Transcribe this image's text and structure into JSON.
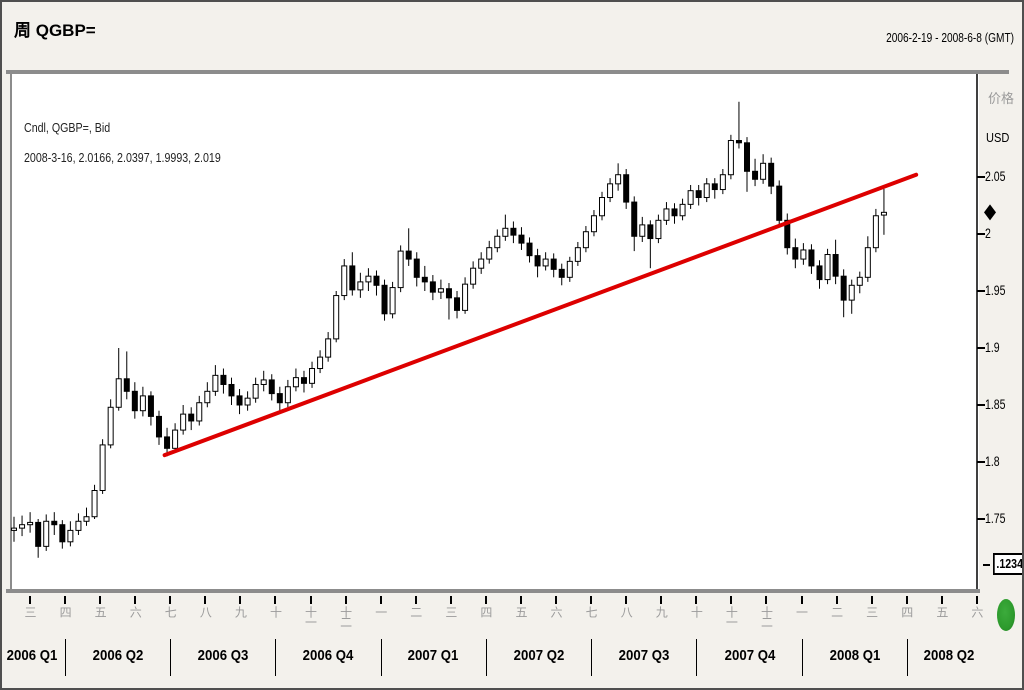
{
  "header": {
    "title": "周 QGBP=",
    "date_range": "2006-2-19 -  2008-6-8 (GMT)"
  },
  "legend": {
    "line1": "Cndl, QGBP=, Bid",
    "line2": "2008-3-16, 2.0166, 2.0397, 1.9993, 2.019"
  },
  "y_axis": {
    "label_cn": "价格",
    "currency": "USD",
    "tick_labels": [
      "2.05",
      "2",
      "1.95",
      "1.9",
      "1.85",
      "1.8",
      "1.75"
    ],
    "tick_values": [
      2.05,
      2.0,
      1.95,
      1.9,
      1.85,
      1.8,
      1.75
    ],
    "last_price_marker": 2.019,
    "decimal_box": ".1234"
  },
  "x_axis": {
    "months": [
      "三",
      "四",
      "五",
      "六",
      "七",
      "八",
      "九",
      "十",
      "十一",
      "十二",
      "一",
      "二",
      "三",
      "四",
      "五",
      "六",
      "七",
      "八",
      "九",
      "十",
      "十一",
      "十二",
      "一",
      "二",
      "三",
      "四",
      "五",
      "六"
    ],
    "quarters": [
      "2006 Q1",
      "2006 Q2",
      "2006 Q3",
      "2006 Q4",
      "2007 Q1",
      "2007 Q2",
      "2007 Q3",
      "2007 Q4",
      "2008 Q1",
      "2008 Q2"
    ]
  },
  "chart_data": {
    "type": "candlestick",
    "instrument": "QGBP=",
    "field": "Bid",
    "interval": "weekly",
    "start_date": "2006-2-19",
    "axis_end_date": "2008-6-8",
    "last_candle_date": "2008-3-16",
    "ylim": [
      1.69,
      2.14
    ],
    "up_candle_fill": "#ffffff",
    "down_candle_fill": "#000000",
    "candles": [
      [
        1.74,
        1.752,
        1.73,
        1.742
      ],
      [
        1.742,
        1.753,
        1.735,
        1.745
      ],
      [
        1.745,
        1.756,
        1.738,
        1.747
      ],
      [
        1.747,
        1.75,
        1.716,
        1.726
      ],
      [
        1.726,
        1.754,
        1.722,
        1.748
      ],
      [
        1.748,
        1.756,
        1.736,
        1.745
      ],
      [
        1.745,
        1.749,
        1.724,
        1.73
      ],
      [
        1.73,
        1.748,
        1.726,
        1.74
      ],
      [
        1.74,
        1.755,
        1.736,
        1.748
      ],
      [
        1.748,
        1.76,
        1.744,
        1.752
      ],
      [
        1.752,
        1.78,
        1.75,
        1.775
      ],
      [
        1.775,
        1.82,
        1.772,
        1.815
      ],
      [
        1.815,
        1.855,
        1.812,
        1.848
      ],
      [
        1.848,
        1.9,
        1.845,
        1.873
      ],
      [
        1.873,
        1.897,
        1.855,
        1.862
      ],
      [
        1.862,
        1.87,
        1.838,
        1.845
      ],
      [
        1.845,
        1.866,
        1.84,
        1.858
      ],
      [
        1.858,
        1.862,
        1.832,
        1.84
      ],
      [
        1.84,
        1.845,
        1.815,
        1.822
      ],
      [
        1.822,
        1.83,
        1.805,
        1.812
      ],
      [
        1.812,
        1.834,
        1.808,
        1.828
      ],
      [
        1.828,
        1.85,
        1.824,
        1.842
      ],
      [
        1.842,
        1.848,
        1.828,
        1.836
      ],
      [
        1.836,
        1.858,
        1.832,
        1.852
      ],
      [
        1.852,
        1.87,
        1.848,
        1.862
      ],
      [
        1.862,
        1.885,
        1.858,
        1.876
      ],
      [
        1.876,
        1.882,
        1.86,
        1.868
      ],
      [
        1.868,
        1.874,
        1.85,
        1.858
      ],
      [
        1.858,
        1.864,
        1.842,
        1.85
      ],
      [
        1.85,
        1.862,
        1.845,
        1.856
      ],
      [
        1.856,
        1.874,
        1.852,
        1.868
      ],
      [
        1.868,
        1.88,
        1.862,
        1.872
      ],
      [
        1.872,
        1.877,
        1.854,
        1.86
      ],
      [
        1.86,
        1.866,
        1.844,
        1.852
      ],
      [
        1.852,
        1.872,
        1.848,
        1.866
      ],
      [
        1.866,
        1.882,
        1.862,
        1.874
      ],
      [
        1.874,
        1.88,
        1.861,
        1.869
      ],
      [
        1.869,
        1.888,
        1.865,
        1.882
      ],
      [
        1.882,
        1.898,
        1.878,
        1.892
      ],
      [
        1.892,
        1.914,
        1.888,
        1.908
      ],
      [
        1.908,
        1.95,
        1.905,
        1.946
      ],
      [
        1.946,
        1.978,
        1.942,
        1.972
      ],
      [
        1.972,
        1.984,
        1.946,
        1.951
      ],
      [
        1.951,
        1.966,
        1.944,
        1.958
      ],
      [
        1.958,
        1.97,
        1.95,
        1.963
      ],
      [
        1.963,
        1.968,
        1.946,
        1.955
      ],
      [
        1.955,
        1.96,
        1.924,
        1.93
      ],
      [
        1.93,
        1.958,
        1.926,
        1.953
      ],
      [
        1.953,
        1.99,
        1.949,
        1.985
      ],
      [
        1.985,
        2.005,
        1.972,
        1.978
      ],
      [
        1.978,
        1.984,
        1.954,
        1.962
      ],
      [
        1.962,
        1.972,
        1.95,
        1.958
      ],
      [
        1.958,
        1.964,
        1.942,
        1.949
      ],
      [
        1.949,
        1.96,
        1.943,
        1.952
      ],
      [
        1.952,
        1.957,
        1.925,
        1.944
      ],
      [
        1.944,
        1.95,
        1.926,
        1.933
      ],
      [
        1.933,
        1.962,
        1.93,
        1.956
      ],
      [
        1.956,
        1.976,
        1.952,
        1.97
      ],
      [
        1.97,
        1.984,
        1.965,
        1.978
      ],
      [
        1.978,
        1.994,
        1.974,
        1.988
      ],
      [
        1.988,
        2.004,
        1.984,
        1.998
      ],
      [
        1.998,
        2.017,
        1.994,
        2.005
      ],
      [
        2.005,
        2.011,
        1.992,
        1.999
      ],
      [
        1.999,
        2.006,
        1.986,
        1.992
      ],
      [
        1.992,
        1.997,
        1.975,
        1.981
      ],
      [
        1.981,
        1.987,
        1.962,
        1.972
      ],
      [
        1.972,
        1.984,
        1.968,
        1.978
      ],
      [
        1.978,
        1.983,
        1.962,
        1.969
      ],
      [
        1.969,
        1.974,
        1.955,
        1.962
      ],
      [
        1.962,
        1.98,
        1.958,
        1.976
      ],
      [
        1.976,
        1.993,
        1.972,
        1.988
      ],
      [
        1.988,
        2.007,
        1.984,
        2.002
      ],
      [
        2.002,
        2.021,
        1.998,
        2.016
      ],
      [
        2.016,
        2.037,
        2.012,
        2.032
      ],
      [
        2.032,
        2.049,
        2.028,
        2.044
      ],
      [
        2.044,
        2.062,
        2.038,
        2.052
      ],
      [
        2.052,
        2.057,
        2.022,
        2.028
      ],
      [
        2.028,
        2.033,
        1.985,
        1.998
      ],
      [
        1.998,
        2.015,
        1.993,
        2.008
      ],
      [
        2.008,
        2.012,
        1.97,
        1.996
      ],
      [
        1.996,
        2.017,
        1.992,
        2.012
      ],
      [
        2.012,
        2.028,
        2.008,
        2.022
      ],
      [
        2.022,
        2.027,
        2.009,
        2.016
      ],
      [
        2.016,
        2.031,
        2.012,
        2.026
      ],
      [
        2.026,
        2.043,
        2.022,
        2.038
      ],
      [
        2.038,
        2.043,
        2.025,
        2.032
      ],
      [
        2.032,
        2.049,
        2.028,
        2.044
      ],
      [
        2.044,
        2.049,
        2.031,
        2.039
      ],
      [
        2.039,
        2.057,
        2.035,
        2.052
      ],
      [
        2.052,
        2.087,
        2.048,
        2.082
      ],
      [
        2.082,
        2.116,
        2.075,
        2.08
      ],
      [
        2.08,
        2.085,
        2.037,
        2.055
      ],
      [
        2.055,
        2.066,
        2.042,
        2.048
      ],
      [
        2.048,
        2.07,
        2.044,
        2.062
      ],
      [
        2.062,
        2.067,
        2.035,
        2.042
      ],
      [
        2.042,
        2.047,
        2.006,
        2.012
      ],
      [
        2.012,
        2.018,
        1.982,
        1.988
      ],
      [
        1.988,
        1.996,
        1.97,
        1.978
      ],
      [
        1.978,
        1.992,
        1.973,
        1.986
      ],
      [
        1.986,
        1.991,
        1.965,
        1.972
      ],
      [
        1.972,
        1.977,
        1.952,
        1.96
      ],
      [
        1.96,
        1.987,
        1.956,
        1.982
      ],
      [
        1.982,
        1.995,
        1.956,
        1.963
      ],
      [
        1.963,
        1.969,
        1.927,
        1.942
      ],
      [
        1.942,
        1.96,
        1.93,
        1.955
      ],
      [
        1.955,
        1.967,
        1.948,
        1.962
      ],
      [
        1.962,
        1.998,
        1.958,
        1.988
      ],
      [
        1.988,
        2.022,
        1.984,
        2.016
      ],
      [
        2.0166,
        2.0397,
        1.9993,
        2.019
      ]
    ],
    "trendline": {
      "color": "#dd0000",
      "week_start": 18.7,
      "price_start": 1.806,
      "week_end": 112.0,
      "price_end": 2.052
    }
  },
  "misc": {
    "green_indicator_color": "#2d9b2d"
  }
}
